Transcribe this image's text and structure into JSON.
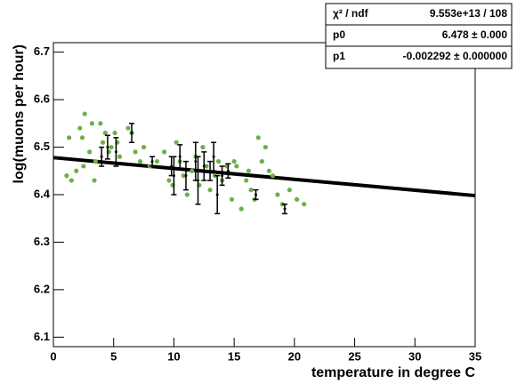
{
  "chart_data": {
    "type": "scatter",
    "y_label": "log(muons per hour)",
    "x_label": "temperature in degree C",
    "xlim": [
      0,
      35
    ],
    "ylim": [
      6.08,
      6.72
    ],
    "xticks": [
      0,
      5,
      10,
      15,
      20,
      25,
      30,
      35
    ],
    "yticks": [
      6.1,
      6.2,
      6.3,
      6.4,
      6.5,
      6.6,
      6.7
    ],
    "series": [
      {
        "color": "#6ab04c",
        "x": [
          1.1,
          1.3,
          1.5,
          1.9,
          2.2,
          2.4,
          2.5,
          2.6,
          3.0,
          3.2,
          3.4,
          3.5,
          3.9,
          4.1,
          4.3,
          4.6,
          4.8,
          5.1,
          5.3,
          5.5,
          6.2,
          6.5,
          6.8,
          7.2,
          7.5,
          8.0,
          8.6,
          9.2,
          9.6,
          9.9,
          10.2,
          10.5,
          10.8,
          11.1,
          11.5,
          11.8,
          12.1,
          12.4,
          12.7,
          13.0,
          13.4,
          13.7,
          14.0,
          14.4,
          14.8,
          15.2,
          15.6,
          16.0,
          16.4,
          16.7,
          17.0,
          17.3,
          17.6,
          17.9,
          18.2,
          18.6,
          19.0,
          19.6,
          20.2,
          20.8,
          15.0,
          16.2
        ],
        "values": [
          6.44,
          6.52,
          6.43,
          6.45,
          6.54,
          6.52,
          6.46,
          6.57,
          6.49,
          6.55,
          6.43,
          6.47,
          6.55,
          6.51,
          6.53,
          6.49,
          6.5,
          6.53,
          6.51,
          6.48,
          6.54,
          6.53,
          6.49,
          6.47,
          6.5,
          6.46,
          6.47,
          6.49,
          6.43,
          6.42,
          6.51,
          6.47,
          6.44,
          6.4,
          6.45,
          6.48,
          6.42,
          6.5,
          6.46,
          6.41,
          6.44,
          6.47,
          6.43,
          6.46,
          6.39,
          6.46,
          6.37,
          6.43,
          6.41,
          6.39,
          6.52,
          6.47,
          6.5,
          6.45,
          6.44,
          6.4,
          6.38,
          6.41,
          6.39,
          6.38,
          6.47,
          6.45
        ]
      },
      {
        "color": "#000000",
        "x": [
          4.0,
          4.5,
          5.2,
          6.5,
          8.2,
          10.0,
          10.5,
          11.0,
          11.8,
          12.0,
          12.5,
          13.0,
          13.6,
          14.0,
          14.5,
          16.8,
          19.2,
          9.8,
          13.3
        ],
        "values": [
          6.48,
          6.5,
          6.49,
          6.53,
          6.47,
          6.44,
          6.48,
          6.44,
          6.47,
          6.43,
          6.46,
          6.45,
          6.4,
          6.44,
          6.45,
          6.4,
          6.37,
          6.46,
          6.48
        ],
        "errors": [
          0.02,
          0.025,
          0.03,
          0.02,
          0.01,
          0.04,
          0.025,
          0.03,
          0.04,
          0.05,
          0.03,
          0.02,
          0.04,
          0.02,
          0.015,
          0.01,
          0.01,
          0.02,
          0.03
        ]
      }
    ],
    "fit": {
      "color": "#000000",
      "x": [
        0,
        35
      ],
      "values": [
        6.478,
        6.398
      ]
    },
    "stats": [
      [
        "χ² / ndf",
        "9.553e+13 / 108"
      ],
      [
        "p0",
        "6.478 ± 0.000"
      ],
      [
        "p1",
        "-0.002292 ± 0.000000"
      ]
    ]
  }
}
